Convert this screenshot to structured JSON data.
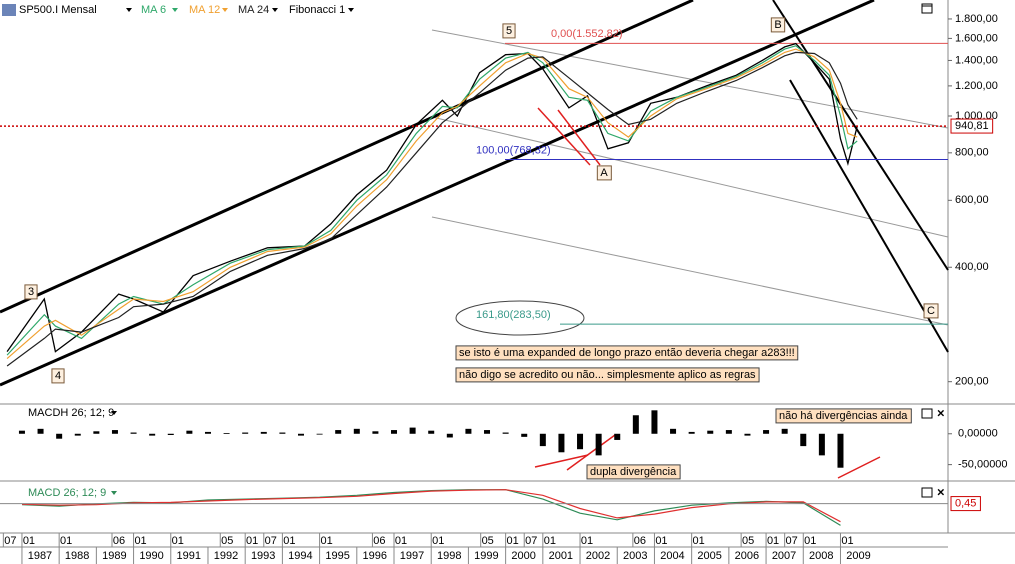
{
  "chart_data": [
    {
      "type": "line",
      "log_scale": true,
      "x": [
        1986.6,
        1987.6,
        1987.9,
        1988.6,
        1989.6,
        1990.0,
        1990.8,
        1991.6,
        1992.6,
        1993.6,
        1994.6,
        1995.3,
        1996.0,
        1996.8,
        1997.6,
        1998.3,
        1998.7,
        1999.3,
        2000.0,
        2000.6,
        2001.0,
        2001.7,
        2002.2,
        2002.75,
        2003.3,
        2003.9,
        2004.6,
        2005.4,
        2006.2,
        2006.9,
        2007.5,
        2007.8,
        2008.3,
        2008.7,
        2009.0,
        2009.2,
        2009.45
      ],
      "series": [
        {
          "name": "SP500.I Mensal",
          "color": "#000000",
          "values": [
            240,
            330,
            240,
            270,
            340,
            330,
            305,
            380,
            415,
            450,
            455,
            520,
            620,
            720,
            950,
            1100,
            1000,
            1300,
            1450,
            1460,
            1330,
            1050,
            1130,
            820,
            850,
            1080,
            1120,
            1200,
            1280,
            1400,
            1520,
            1550,
            1380,
            1250,
            870,
            750,
            940
          ]
        },
        {
          "name": "MA 6",
          "color": "#2fa86a",
          "values": [
            235,
            300,
            280,
            260,
            320,
            335,
            320,
            360,
            410,
            445,
            455,
            500,
            600,
            700,
            900,
            1060,
            1050,
            1250,
            1420,
            1470,
            1380,
            1120,
            1100,
            900,
            860,
            1030,
            1120,
            1190,
            1270,
            1380,
            1500,
            1530,
            1400,
            1280,
            1000,
            820,
            860
          ]
        },
        {
          "name": "MA 12",
          "color": "#f0a030",
          "values": [
            230,
            280,
            290,
            265,
            310,
            330,
            325,
            345,
            400,
            440,
            452,
            490,
            580,
            680,
            860,
            1020,
            1060,
            1200,
            1380,
            1460,
            1420,
            1180,
            1120,
            960,
            880,
            1000,
            1110,
            1180,
            1260,
            1360,
            1470,
            1500,
            1430,
            1320,
            1080,
            900,
            880
          ]
        },
        {
          "name": "MA 24",
          "color": "#222222",
          "values": [
            220,
            260,
            275,
            270,
            295,
            315,
            320,
            335,
            390,
            430,
            448,
            475,
            550,
            650,
            800,
            960,
            1030,
            1150,
            1320,
            1420,
            1430,
            1260,
            1150,
            1040,
            950,
            980,
            1080,
            1160,
            1240,
            1340,
            1440,
            1470,
            1460,
            1380,
            1220,
            1070,
            980
          ]
        }
      ],
      "xlim": [
        1986.41,
        2011.89
      ],
      "ylim": [
        179,
        2019
      ],
      "yticks": [
        {
          "value": 200,
          "label": "200,00"
        },
        {
          "value": 400,
          "label": "400,00"
        },
        {
          "value": 600,
          "label": "600,00"
        },
        {
          "value": 800,
          "label": "800,00"
        },
        {
          "value": 1000,
          "label": "1.000,00"
        },
        {
          "value": 1200,
          "label": "1.200,00"
        },
        {
          "value": 1400,
          "label": "1.400,00"
        },
        {
          "value": 1600,
          "label": "1.600,00"
        },
        {
          "value": 1800,
          "label": "1.800,00"
        }
      ],
      "last_value": {
        "value": 940.81,
        "label": "940,81",
        "color": "#cc0000"
      },
      "fibonacci": {
        "name": "Fibonacci 1",
        "levels": [
          {
            "value": 1552.82,
            "label": "0,00(1.552,82)",
            "color": "#e05050"
          },
          {
            "value": 768.32,
            "label": "100,00(768,32)",
            "color": "#3030c0"
          },
          {
            "value": 283.5,
            "label": "161,80(283,50)",
            "color": "#3a9a8a"
          }
        ]
      },
      "waves": [
        "5",
        "3",
        "4",
        "A",
        "B",
        "C"
      ],
      "notes": [
        "se isto é uma expanded de longo prazo então deveria chegar a283!!!",
        "não digo se acredito ou não... simplesmente aplico as regras"
      ]
    },
    {
      "type": "bar",
      "title": "MACDH 26; 12; 9",
      "color": "#000000",
      "x": [
        1987.0,
        1987.5,
        1988.0,
        1988.5,
        1989.0,
        1989.5,
        1990.0,
        1990.5,
        1991.0,
        1991.5,
        1992.0,
        1992.5,
        1993.0,
        1993.5,
        1994.0,
        1994.5,
        1995.0,
        1995.5,
        1996.0,
        1996.5,
        1997.0,
        1997.5,
        1998.0,
        1998.5,
        1999.0,
        1999.5,
        2000.0,
        2000.5,
        2001.0,
        2001.5,
        2002.0,
        2002.5,
        2003.0,
        2003.5,
        2004.0,
        2004.5,
        2005.0,
        2005.5,
        2006.0,
        2006.5,
        2007.0,
        2007.5,
        2008.0,
        2008.5,
        2009.0
      ],
      "values": [
        5,
        8,
        -8,
        -3,
        4,
        6,
        2,
        -3,
        -2,
        5,
        3,
        1,
        2,
        3,
        2,
        -3,
        -1,
        6,
        8,
        4,
        6,
        10,
        5,
        -6,
        8,
        6,
        2,
        -5,
        -20,
        -30,
        -25,
        -35,
        -10,
        30,
        38,
        8,
        3,
        5,
        6,
        -3,
        6,
        8,
        -20,
        -35,
        -55
      ],
      "xlim": [
        1986.41,
        2011.89
      ],
      "ylim": [
        -73.3,
        45
      ],
      "yticks": [
        {
          "value": 0,
          "label": "0,00000"
        },
        {
          "value": -50,
          "label": "-50,00000"
        }
      ],
      "notes": [
        "não há divergências ainda",
        "dupla divergência"
      ]
    },
    {
      "type": "line",
      "title": "MACD 26; 12; 9",
      "title_color": "#2e8b57",
      "x": [
        1987,
        1988,
        1989,
        1990,
        1991,
        1992,
        1993,
        1994,
        1995,
        1996,
        1997,
        1998,
        1999,
        2000,
        2001,
        2002,
        2003,
        2004,
        2005,
        2006,
        2007,
        2008,
        2009
      ],
      "series": [
        {
          "color": "#2e8b57",
          "values": [
            -2,
            -5,
            0,
            3,
            2,
            8,
            10,
            12,
            14,
            18,
            24,
            28,
            30,
            30,
            10,
            -20,
            -34,
            -15,
            -3,
            2,
            5,
            2,
            -46
          ]
        },
        {
          "color": "#e03030",
          "values": [
            -1,
            -3,
            -2,
            2,
            3,
            6,
            9,
            11,
            13,
            16,
            22,
            27,
            29,
            30,
            18,
            -10,
            -30,
            -22,
            -8,
            0,
            4,
            4,
            -38
          ]
        }
      ],
      "xlim": [
        1986.41,
        2011.89
      ],
      "ylim": [
        -60,
        40
      ],
      "last_value": {
        "value": 0.45,
        "label": "0,45",
        "color": "#cc0000"
      },
      "xticks": [
        1987,
        1988,
        1989,
        1990,
        1991,
        1992,
        1993,
        1994,
        1995,
        1996,
        1997,
        1998,
        1999,
        2000,
        2001,
        2002,
        2003,
        2004,
        2005,
        2006,
        2007,
        2008,
        2009
      ],
      "month_ticks": [
        {
          "value": 1986.5,
          "label": "07"
        },
        {
          "value": 1987,
          "label": "01"
        },
        {
          "value": 1988,
          "label": "01"
        },
        {
          "value": 1989.42,
          "label": "06"
        },
        {
          "value": 1990,
          "label": "01"
        },
        {
          "value": 1991,
          "label": "01"
        },
        {
          "value": 1992.33,
          "label": "05"
        },
        {
          "value": 1993,
          "label": "01"
        },
        {
          "value": 1993.5,
          "label": "07"
        },
        {
          "value": 1994,
          "label": "01"
        },
        {
          "value": 1995,
          "label": "01"
        },
        {
          "value": 1996.42,
          "label": "06"
        },
        {
          "value": 1997,
          "label": "01"
        },
        {
          "value": 1998,
          "label": "01"
        },
        {
          "value": 1999.33,
          "label": "05"
        },
        {
          "value": 2000,
          "label": "01"
        },
        {
          "value": 2000.5,
          "label": "07"
        },
        {
          "value": 2001,
          "label": "01"
        },
        {
          "value": 2002,
          "label": "01"
        },
        {
          "value": 2003.42,
          "label": "06"
        },
        {
          "value": 2004,
          "label": "01"
        },
        {
          "value": 2005,
          "label": "01"
        },
        {
          "value": 2006.33,
          "label": "05"
        },
        {
          "value": 2007,
          "label": "01"
        },
        {
          "value": 2007.5,
          "label": "07"
        },
        {
          "value": 2008,
          "label": "01"
        },
        {
          "value": 2009,
          "label": "01"
        }
      ]
    }
  ]
}
